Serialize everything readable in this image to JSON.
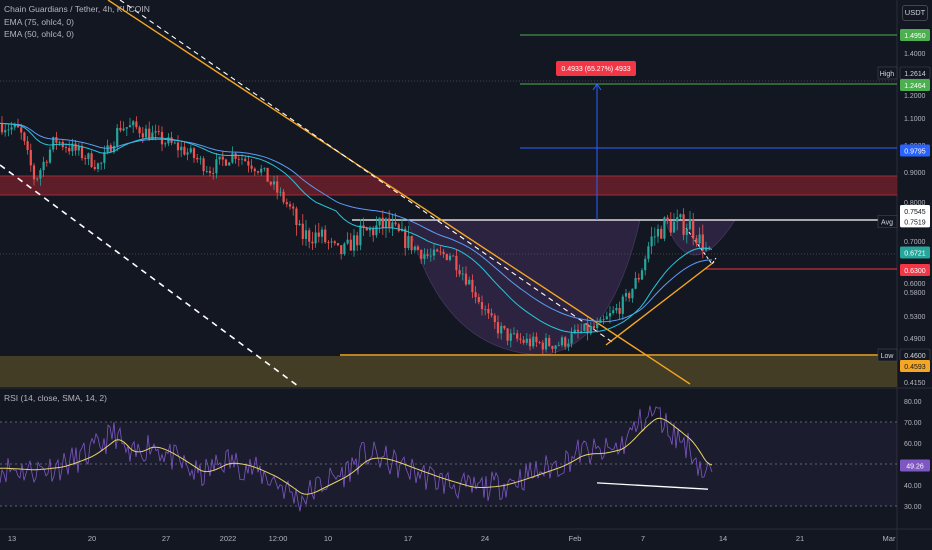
{
  "header": {
    "symbol": "Chain Guardians / Tether, 4h, KUCOIN",
    "ema75": "EMA (75, ohlc4, 0)",
    "ema50": "EMA (50, ohlc4, 0)",
    "currency": "USDT"
  },
  "chart_data": [
    {
      "type": "candlestick",
      "title": "Chain Guardians / Tether, 4h, KUCOIN",
      "y_axis_ticks": [
        "1.4950",
        "1.4000",
        "1.3000",
        "1.2000",
        "1.1000",
        "1.0000",
        "0.9000",
        "0.8000",
        "0.7000",
        "0.6000",
        "0.5800",
        "0.5300",
        "0.4900",
        "0.4600",
        "0.4150"
      ],
      "price_labels": [
        {
          "text": "1.4950",
          "role": "target"
        },
        {
          "text": "1.2614",
          "tag": "High",
          "role": "high"
        },
        {
          "text": "1.2464",
          "role": "target"
        },
        {
          "text": "0.9795",
          "role": "level"
        },
        {
          "text": "0.7545",
          "role": "resistance"
        },
        {
          "text": "0.7519",
          "tag": "Avg",
          "role": "avg"
        },
        {
          "text": "0.6721",
          "role": "last"
        },
        {
          "text": "0.6300",
          "role": "support"
        },
        {
          "text": "0.4600",
          "tag": "Low",
          "role": "low"
        },
        {
          "text": "0.4593",
          "role": "base"
        }
      ],
      "x_axis_ticks": [
        "13",
        "20",
        "27",
        "2022",
        "12:00",
        "10",
        "17",
        "24",
        "Feb",
        "7",
        "14",
        "21",
        "Mar"
      ],
      "measure_label": "0.4933 (65.27%) 4933",
      "series": [
        {
          "name": "EMA (75, ohlc4, 0)",
          "color": "#5b9cf6"
        },
        {
          "name": "EMA (50, ohlc4, 0)",
          "color": "#26c6da"
        }
      ],
      "colors": {
        "up": "#26a69a",
        "down": "#ef5350",
        "resistance_zone": "#6b1e2a",
        "support_zone": "#4a4126",
        "trendline": "#f5a623"
      }
    },
    {
      "type": "line",
      "title": "RSI (14, close, SMA, 14, 2)",
      "y_axis_ticks": [
        "80.00",
        "70.00",
        "60.00",
        "50.00",
        "40.00",
        "30.00"
      ],
      "rsi_last": "49.26",
      "series": [
        {
          "name": "RSI",
          "color": "#7e57c2"
        },
        {
          "name": "SMA",
          "color": "#e6d46a"
        }
      ]
    }
  ]
}
